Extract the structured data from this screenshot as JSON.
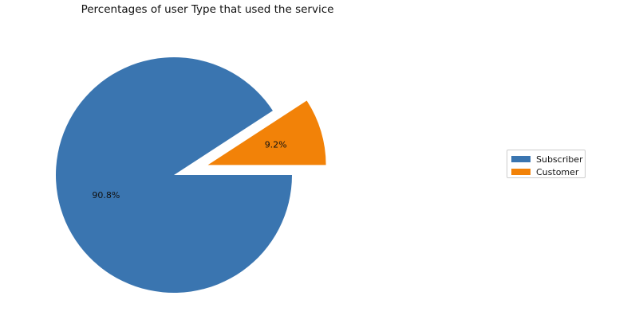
{
  "chart_data": {
    "type": "pie",
    "title": "Percentages of user Type that used the service",
    "categories": [
      "Subscriber",
      "Customer"
    ],
    "values": [
      90.8,
      9.2
    ],
    "labels": [
      "90.8%",
      "9.2%"
    ],
    "colors": [
      "#3a75b0",
      "#f28208"
    ],
    "start_angle_deg": 0,
    "direction": "clockwise",
    "explode": [
      0,
      0.3
    ],
    "legend": {
      "entries": [
        "Subscriber",
        "Customer"
      ],
      "placement": "right"
    }
  }
}
